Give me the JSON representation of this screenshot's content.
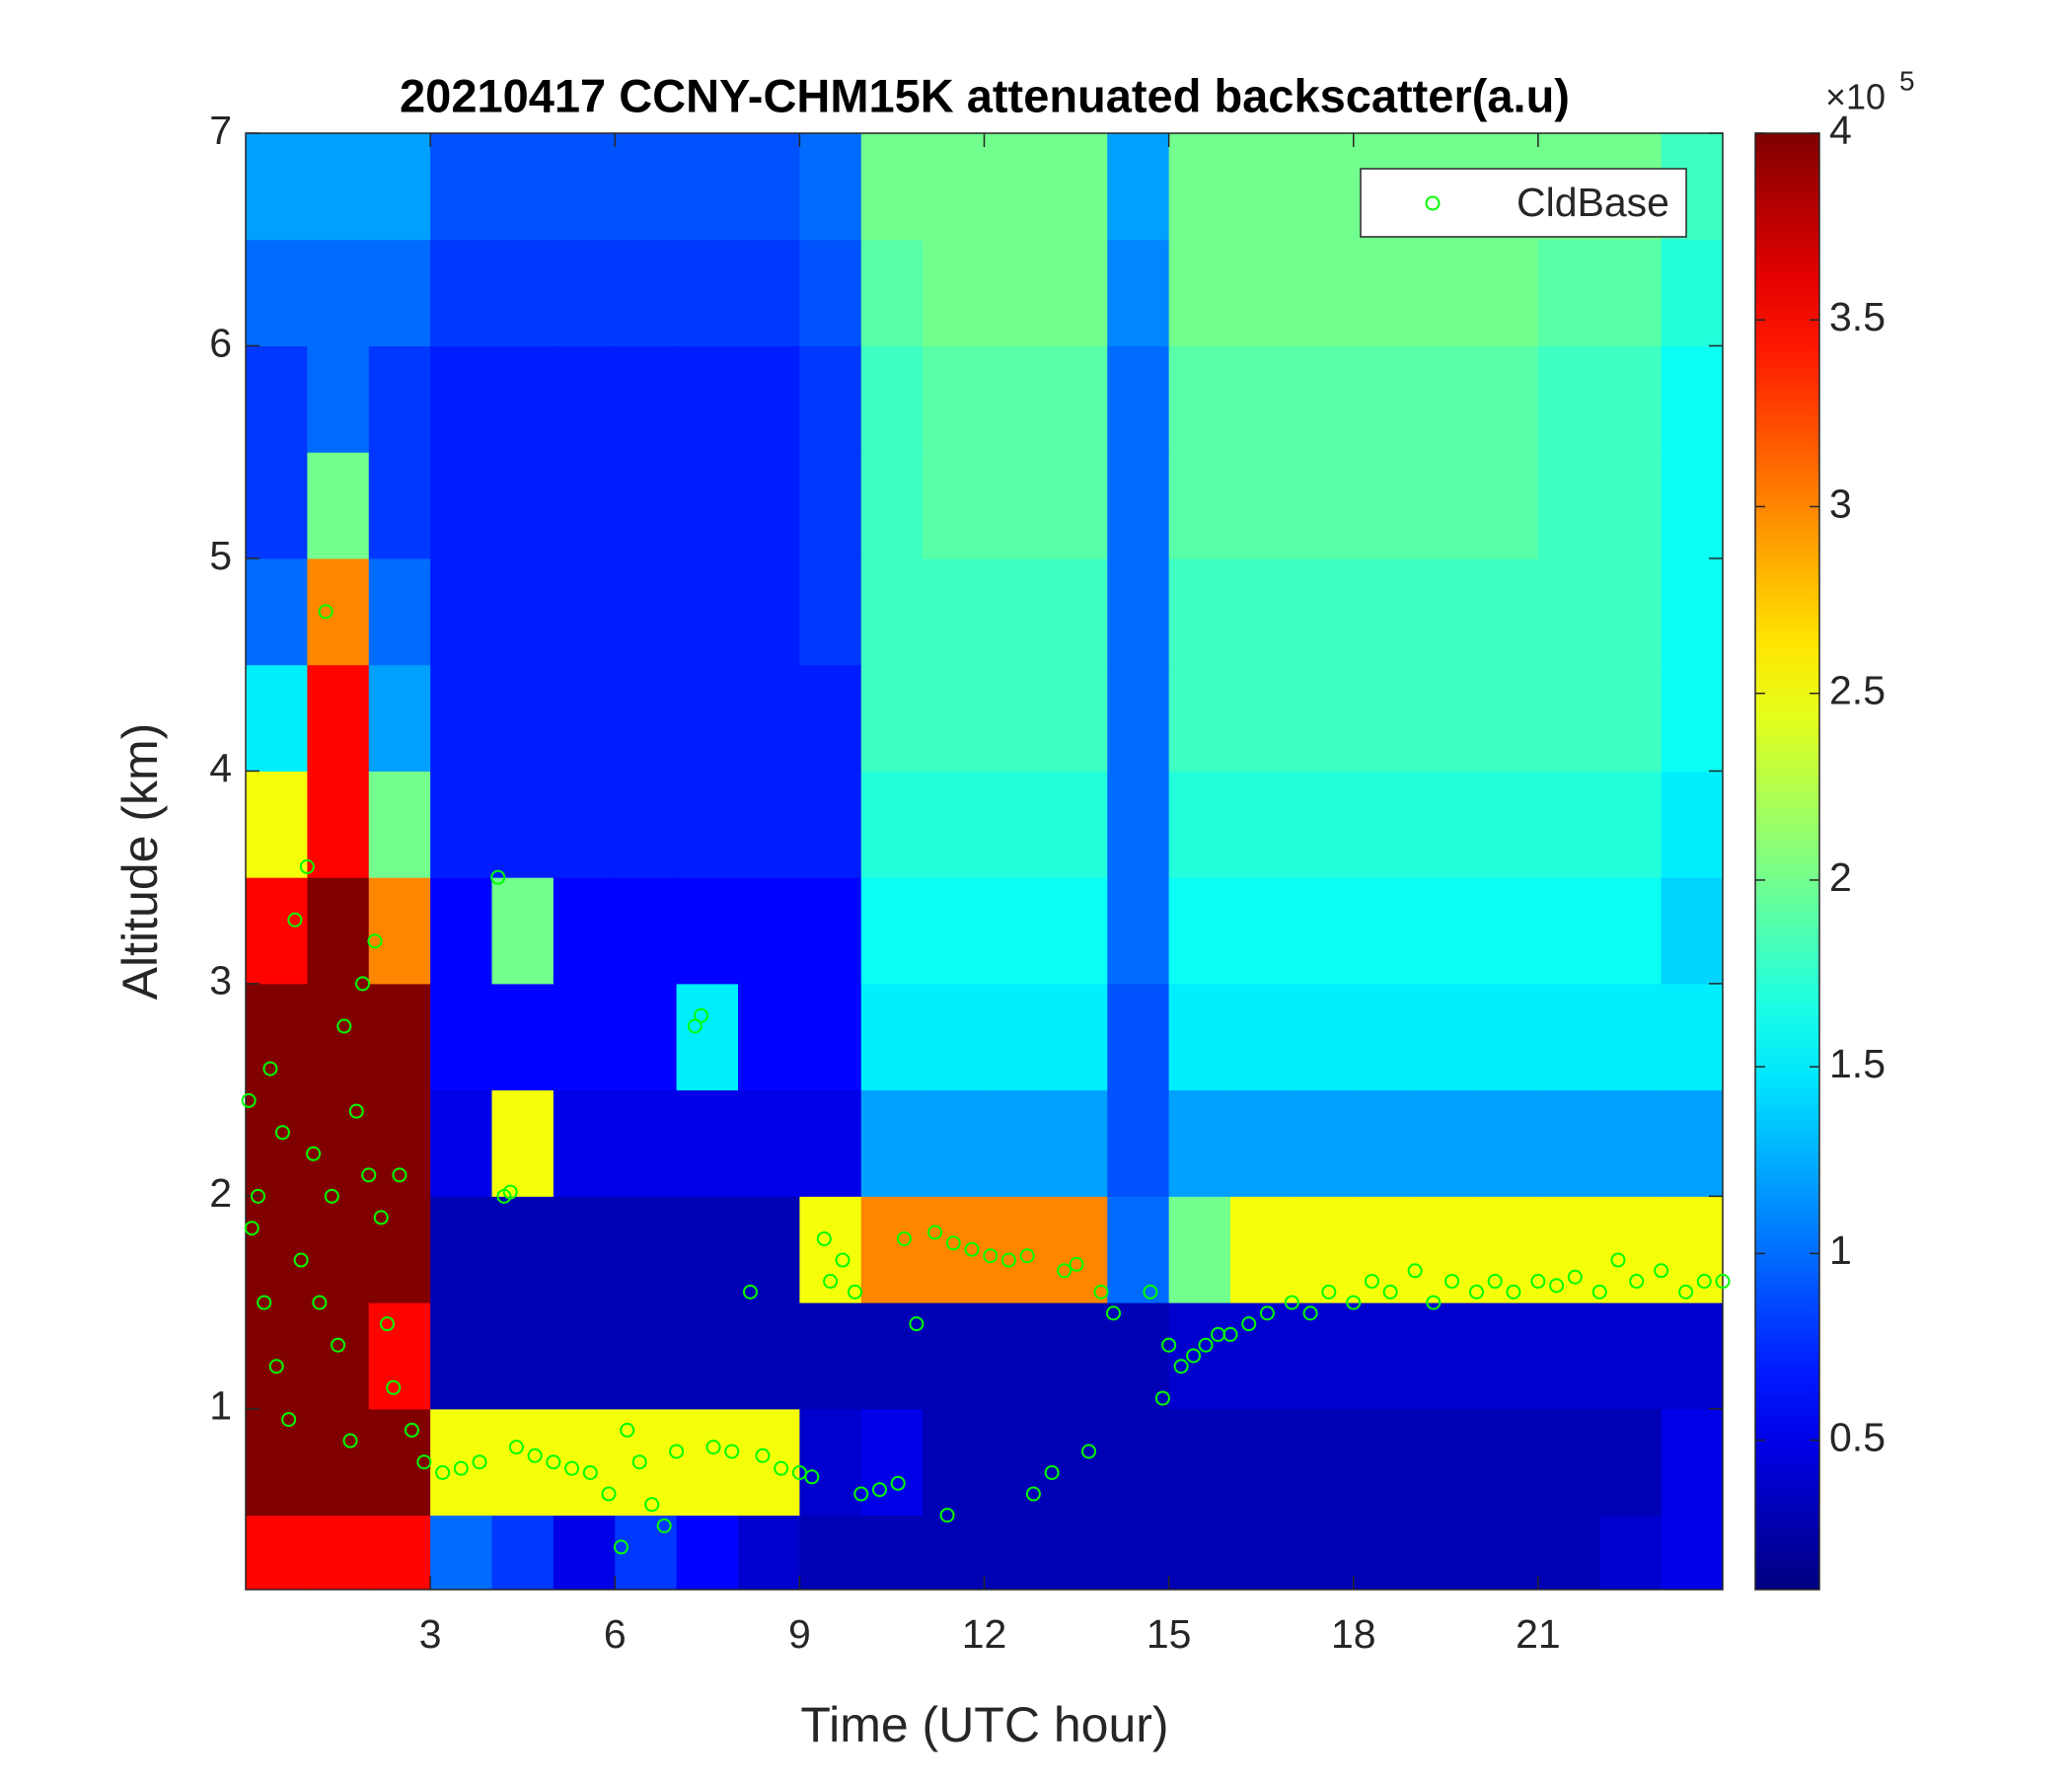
{
  "chart_data": {
    "type": "heatmap",
    "title": "20210417 CCNY-CHM15K attenuated backscatter(a.u)",
    "x_label": "Time (UTC hour)",
    "y_label": "Altitude (km)",
    "xlim": [
      0,
      24
    ],
    "ylim": [
      0.15,
      7
    ],
    "xticks": [
      3,
      6,
      9,
      12,
      15,
      18,
      21
    ],
    "yticks": [
      1,
      2,
      3,
      4,
      5,
      6,
      7
    ],
    "x_edges": [
      0,
      1,
      2,
      3,
      4,
      5,
      6,
      7,
      8,
      9,
      10,
      11,
      12,
      13,
      14,
      15,
      16,
      17,
      18,
      19,
      20,
      21,
      22,
      23,
      24
    ],
    "y_edges": [
      0.15,
      0.5,
      1,
      1.5,
      2,
      2.5,
      3,
      3.5,
      4,
      4.5,
      5,
      5.5,
      6,
      6.5,
      7
    ],
    "z": [
      [
        3.5,
        3.5,
        3.5,
        1.0,
        0.8,
        0.5,
        0.8,
        0.6,
        0.4,
        0.3,
        0.3,
        0.3,
        0.3,
        0.3,
        0.3,
        0.3,
        0.3,
        0.3,
        0.3,
        0.3,
        0.3,
        0.3,
        0.4,
        0.5
      ],
      [
        4,
        4,
        4,
        2.5,
        2.5,
        2.5,
        2.5,
        2.5,
        2.5,
        0.4,
        0.5,
        0.3,
        0.3,
        0.3,
        0.3,
        0.3,
        0.3,
        0.3,
        0.3,
        0.3,
        0.3,
        0.3,
        0.3,
        0.5
      ],
      [
        4,
        4,
        3.5,
        0.3,
        0.3,
        0.3,
        0.3,
        0.3,
        0.3,
        0.3,
        0.3,
        0.3,
        0.3,
        0.3,
        0.3,
        0.4,
        0.4,
        0.4,
        0.4,
        0.4,
        0.4,
        0.4,
        0.4,
        0.4
      ],
      [
        4,
        4,
        4,
        0.3,
        0.3,
        0.3,
        0.3,
        0.3,
        0.3,
        2.5,
        3,
        3,
        3,
        3,
        1,
        2,
        2.5,
        2.5,
        2.5,
        2.5,
        2.5,
        2.5,
        2.5,
        2.5
      ],
      [
        4,
        4,
        4,
        0.5,
        2.5,
        0.5,
        0.5,
        0.5,
        0.5,
        0.5,
        1.2,
        1.2,
        1.2,
        1.2,
        0.9,
        1.2,
        1.2,
        1.2,
        1.2,
        1.2,
        1.2,
        1.2,
        1.2,
        1.2
      ],
      [
        4,
        4,
        4,
        0.6,
        0.6,
        0.6,
        0.6,
        1.5,
        0.6,
        0.6,
        1.5,
        1.5,
        1.5,
        1.5,
        0.9,
        1.5,
        1.5,
        1.5,
        1.5,
        1.5,
        1.5,
        1.5,
        1.5,
        1.5
      ],
      [
        3.5,
        4,
        3,
        0.6,
        2,
        0.6,
        0.6,
        0.6,
        0.6,
        0.6,
        1.6,
        1.6,
        1.6,
        1.6,
        1,
        1.6,
        1.6,
        1.6,
        1.6,
        1.6,
        1.6,
        1.6,
        1.6,
        1.4
      ],
      [
        2.5,
        3.5,
        2,
        0.7,
        0.7,
        0.7,
        0.7,
        0.7,
        0.7,
        0.7,
        1.7,
        1.7,
        1.7,
        1.7,
        1,
        1.7,
        1.7,
        1.7,
        1.7,
        1.7,
        1.7,
        1.7,
        1.7,
        1.5
      ],
      [
        1.5,
        3.5,
        1.2,
        0.7,
        0.7,
        0.7,
        0.7,
        0.7,
        0.7,
        0.7,
        1.8,
        1.8,
        1.8,
        1.8,
        1,
        1.8,
        1.8,
        1.8,
        1.8,
        1.8,
        1.8,
        1.8,
        1.8,
        1.6
      ],
      [
        1,
        3,
        1,
        0.7,
        0.7,
        0.7,
        0.7,
        0.7,
        0.7,
        0.8,
        1.8,
        1.8,
        1.8,
        1.8,
        1,
        1.8,
        1.8,
        1.8,
        1.8,
        1.8,
        1.8,
        1.8,
        1.8,
        1.6
      ],
      [
        0.8,
        2,
        0.8,
        0.7,
        0.7,
        0.7,
        0.7,
        0.7,
        0.7,
        0.8,
        1.8,
        1.9,
        1.9,
        1.9,
        1,
        1.9,
        1.9,
        1.9,
        1.9,
        1.9,
        1.9,
        1.8,
        1.8,
        1.6
      ],
      [
        0.8,
        1,
        0.8,
        0.7,
        0.7,
        0.7,
        0.7,
        0.7,
        0.7,
        0.8,
        1.8,
        1.9,
        1.9,
        1.9,
        1,
        1.9,
        1.9,
        1.9,
        1.9,
        1.9,
        1.9,
        1.8,
        1.8,
        1.6
      ],
      [
        1,
        1,
        1,
        0.8,
        0.8,
        0.8,
        0.8,
        0.8,
        0.8,
        0.9,
        1.9,
        2,
        2,
        2,
        1.1,
        2,
        2,
        2,
        2,
        2,
        2,
        1.9,
        1.9,
        1.7
      ],
      [
        1.2,
        1.2,
        1.2,
        0.9,
        0.9,
        0.9,
        0.9,
        0.9,
        0.9,
        1,
        2,
        2,
        2,
        2,
        1.2,
        2,
        2,
        2,
        2,
        2,
        2,
        2,
        2,
        1.8
      ]
    ],
    "colormap": "jet",
    "clim": [
      0.1,
      4
    ],
    "colorbar_ticks": [
      0.5,
      1,
      1.5,
      2,
      2.5,
      3,
      3.5,
      4
    ],
    "colorbar_multiplier": "×10",
    "colorbar_exponent": "5",
    "legend": "upper right",
    "series": [
      {
        "name": "CldBase",
        "type": "scatter",
        "color": "#00ff00",
        "x": [
          0.05,
          0.1,
          0.2,
          0.3,
          0.4,
          0.5,
          0.6,
          0.7,
          0.8,
          0.9,
          1.0,
          1.1,
          1.2,
          1.3,
          1.4,
          1.5,
          1.6,
          1.7,
          1.8,
          1.9,
          2.0,
          2.1,
          2.2,
          2.3,
          2.4,
          2.5,
          2.7,
          2.9,
          3.2,
          3.5,
          3.8,
          4.1,
          4.2,
          4.3,
          4.4,
          4.7,
          5.0,
          5.3,
          5.6,
          5.9,
          6.1,
          6.2,
          6.4,
          6.6,
          6.8,
          7.0,
          7.3,
          7.4,
          7.6,
          7.9,
          8.2,
          8.4,
          8.7,
          9.0,
          9.2,
          9.4,
          9.5,
          9.7,
          9.9,
          10.0,
          10.3,
          10.6,
          10.7,
          10.9,
          11.2,
          11.4,
          11.5,
          11.8,
          12.1,
          12.4,
          12.7,
          12.8,
          13.1,
          13.3,
          13.5,
          13.7,
          13.9,
          14.1,
          14.7,
          14.9,
          15.0,
          15.2,
          15.4,
          15.6,
          15.8,
          16.0,
          16.3,
          16.6,
          17.0,
          17.3,
          17.6,
          18.0,
          18.3,
          18.6,
          19.0,
          19.3,
          19.6,
          20.0,
          20.3,
          20.6,
          21.0,
          21.3,
          21.6,
          22.0,
          22.3,
          22.6,
          23.0,
          23.4,
          23.7,
          24.0
        ],
        "values": [
          2.45,
          1.85,
          2.0,
          1.5,
          2.6,
          1.2,
          2.3,
          0.95,
          3.3,
          1.7,
          3.55,
          2.2,
          1.5,
          4.75,
          2.0,
          1.3,
          2.8,
          0.85,
          2.4,
          3.0,
          2.1,
          3.2,
          1.9,
          1.4,
          1.1,
          2.1,
          0.9,
          0.75,
          0.7,
          0.72,
          0.75,
          3.5,
          2.0,
          2.02,
          0.82,
          0.78,
          0.75,
          0.72,
          0.7,
          0.6,
          0.35,
          0.9,
          0.75,
          0.55,
          0.45,
          0.8,
          2.8,
          2.85,
          0.82,
          0.8,
          1.55,
          0.78,
          0.72,
          0.7,
          0.68,
          1.8,
          1.6,
          1.7,
          1.55,
          0.6,
          0.62,
          0.65,
          1.8,
          1.4,
          1.83,
          0.5,
          1.78,
          1.75,
          1.72,
          1.7,
          1.72,
          0.6,
          0.7,
          1.65,
          1.68,
          0.8,
          1.55,
          1.45,
          1.55,
          1.05,
          1.3,
          1.2,
          1.25,
          1.3,
          1.35,
          1.35,
          1.4,
          1.45,
          1.5,
          1.45,
          1.55,
          1.5,
          1.6,
          1.55,
          1.65,
          1.5,
          1.6,
          1.55,
          1.6,
          1.55,
          1.6,
          1.58,
          1.62,
          1.55,
          1.7,
          1.6,
          1.65,
          1.55,
          1.6,
          1.6
        ]
      }
    ]
  }
}
